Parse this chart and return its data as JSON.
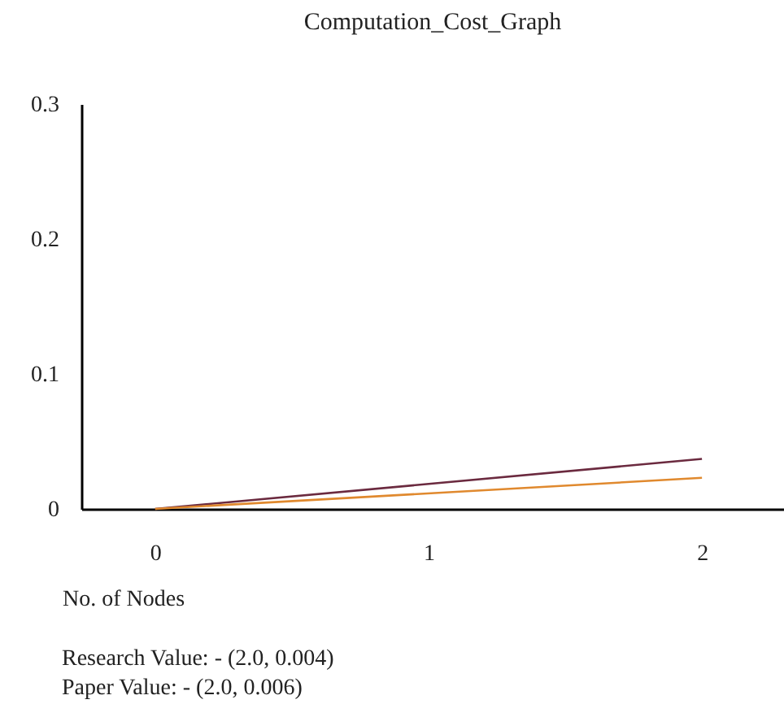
{
  "chart_data": {
    "type": "line",
    "title": "Computation_Cost_Graph",
    "xlabel": "No. of Nodes",
    "x": [
      0,
      2
    ],
    "series": [
      {
        "color": "#6b2a3f",
        "values": [
          0,
          0.037
        ]
      },
      {
        "color": "#e0892e",
        "values": [
          0,
          0.023
        ]
      }
    ],
    "xlim": [
      -0.27,
      2.3
    ],
    "xticks": [
      0,
      1,
      2
    ],
    "ylim": [
      0,
      0.3
    ],
    "yticks": [
      0,
      0.1,
      0.2,
      0.3
    ],
    "annotations": [
      "Research Value: - (2.0, 0.004)",
      "Paper Value: - (2.0, 0.006)"
    ]
  }
}
